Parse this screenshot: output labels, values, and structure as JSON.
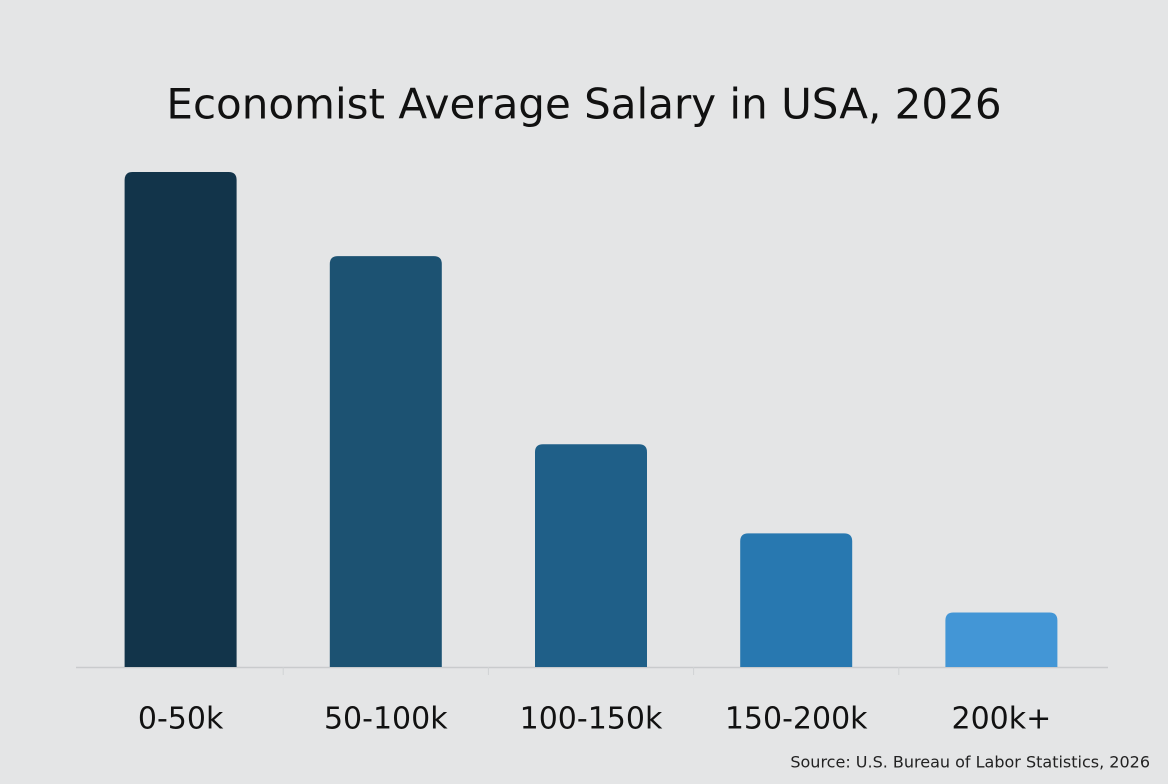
{
  "chart_data": {
    "type": "bar",
    "title": "Economist Average Salary in USA, 2026",
    "categories": [
      "0-50k",
      "50-100k",
      "100-150k",
      "150-200k",
      "200k+"
    ],
    "values": [
      100,
      83,
      45,
      27,
      11
    ],
    "colors": [
      "#12344a",
      "#1c5272",
      "#1f5f88",
      "#2878b0",
      "#4396d6"
    ],
    "source": "Source: U.S. Bureau of Labor Statistics, 2026"
  }
}
